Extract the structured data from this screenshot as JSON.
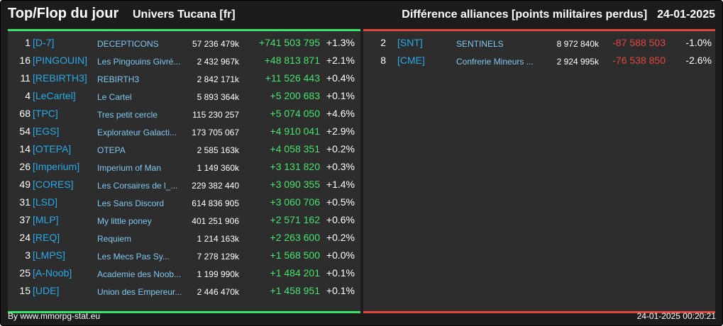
{
  "header": {
    "title": "Top/Flop du jour",
    "universe": "Univers Tucana [fr]",
    "subtitle": "Différence alliances [points militaires perdus]",
    "date": "24-01-2025"
  },
  "colors": {
    "top_accent": "#39e36b",
    "flop_accent": "#e0463c",
    "tag_color": "#29a9e8",
    "name_color": "#7fc7f0"
  },
  "top": [
    {
      "rank": "1",
      "tag": "[D-7]",
      "name": "DECEPTICONS",
      "points": "57 236 479k",
      "diff": "+741 503 795",
      "pct": "+1.3%"
    },
    {
      "rank": "16",
      "tag": "[PINGOUIN]",
      "name": "Les Pingouins Givré...",
      "points": "2 432 967k",
      "diff": "+48 813 871",
      "pct": "+2.1%"
    },
    {
      "rank": "11",
      "tag": "[REBIRTH3]",
      "name": "REBIRTH3",
      "points": "2 842 171k",
      "diff": "+11 526 443",
      "pct": "+0.4%"
    },
    {
      "rank": "4",
      "tag": "[LeCartel]",
      "name": "Le Cartel",
      "points": "5 893 364k",
      "diff": "+5 200 683",
      "pct": "+0.1%"
    },
    {
      "rank": "68",
      "tag": "[TPC]",
      "name": "Tres petit cercle",
      "points": "115 230 257",
      "diff": "+5 074 050",
      "pct": "+4.6%"
    },
    {
      "rank": "54",
      "tag": "[EGS]",
      "name": "Explorateur Galacti...",
      "points": "173 705 067",
      "diff": "+4 910 041",
      "pct": "+2.9%"
    },
    {
      "rank": "14",
      "tag": "[OTEPA]",
      "name": "OTEPA",
      "points": "2 585 163k",
      "diff": "+4 058 351",
      "pct": "+0.2%"
    },
    {
      "rank": "26",
      "tag": "[Imperium]",
      "name": "Imperium of Man",
      "points": "1 149 360k",
      "diff": "+3 131 820",
      "pct": "+0.3%"
    },
    {
      "rank": "49",
      "tag": "[CORES]",
      "name": "Les Corsaires de l_...",
      "points": "229 382 440",
      "diff": "+3 090 355",
      "pct": "+1.4%"
    },
    {
      "rank": "31",
      "tag": "[LSD]",
      "name": "Les Sans Discord",
      "points": "614 836 905",
      "diff": "+3 060 706",
      "pct": "+0.5%"
    },
    {
      "rank": "37",
      "tag": "[MLP]",
      "name": "My little poney",
      "points": "401 251 906",
      "diff": "+2 571 162",
      "pct": "+0.6%"
    },
    {
      "rank": "24",
      "tag": "[REQ]",
      "name": "Requiem",
      "points": "1 214 163k",
      "diff": "+2 263 600",
      "pct": "+0.2%"
    },
    {
      "rank": "3",
      "tag": "[LMPS]",
      "name": "Les Mecs Pas Sy...",
      "points": "7 278 129k",
      "diff": "+1 568 500",
      "pct": "+0.0%"
    },
    {
      "rank": "25",
      "tag": "[A-Noob]",
      "name": "Academie des Noob...",
      "points": "1 199 990k",
      "diff": "+1 484 201",
      "pct": "+0.1%"
    },
    {
      "rank": "15",
      "tag": "[UDE]",
      "name": "Union des Empereur...",
      "points": "2 446 470k",
      "diff": "+1 458 951",
      "pct": "+0.1%"
    }
  ],
  "flop": [
    {
      "rank": "2",
      "tag": "[SNT]",
      "name": "SENTINELS",
      "points": "8 972 840k",
      "diff": "-87 588 503",
      "pct": "-1.0%"
    },
    {
      "rank": "8",
      "tag": "[CME]",
      "name": "Confrerie Mineurs ...",
      "points": "2 924 995k",
      "diff": "-76 538 850",
      "pct": "-2.6%"
    }
  ],
  "footer": {
    "source": "By www.mmorpg-stat.eu",
    "timestamp": "24-01-2025 00:20:21"
  }
}
